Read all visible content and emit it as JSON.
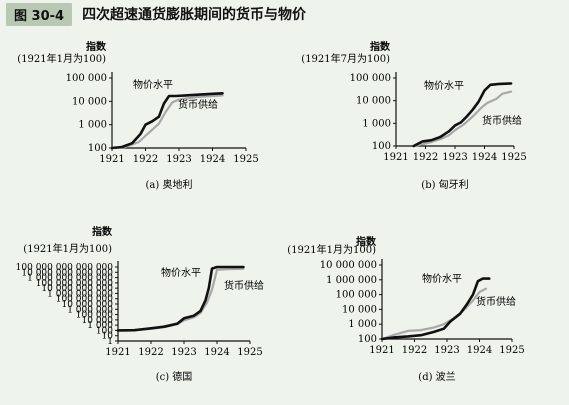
{
  "figure": {
    "number": "图 30-4",
    "title": "四次超速通货膨胀期间的货币与物价"
  },
  "colors": {
    "price_line": "#111111",
    "money_line": "#a8a8a8",
    "background": "#eef4ec",
    "header_tag": "#b9c8b2"
  },
  "chart_data": [
    {
      "type": "line",
      "caption": "(a) 奥地利",
      "ylabel": "指数",
      "ylabel_sub": "(1921年1月为100)",
      "scale": "log",
      "xlim": [
        1921,
        1925
      ],
      "ylim": [
        100,
        100000
      ],
      "x_ticks": [
        "1921",
        "1922",
        "1923",
        "1924",
        "1925"
      ],
      "y_ticks": [
        {
          "value": 100,
          "label": "100"
        },
        {
          "value": 1000,
          "label": "1 000"
        },
        {
          "value": 10000,
          "label": "10 000"
        },
        {
          "value": 100000,
          "label": "100 000"
        }
      ],
      "series": [
        {
          "name": "物价水平",
          "points": [
            [
              1921.0,
              100
            ],
            [
              1921.3,
              110
            ],
            [
              1921.6,
              160
            ],
            [
              1921.85,
              400
            ],
            [
              1922.0,
              1000
            ],
            [
              1922.2,
              1400
            ],
            [
              1922.4,
              2200
            ],
            [
              1922.55,
              8000
            ],
            [
              1922.7,
              17000
            ],
            [
              1922.9,
              17000
            ],
            [
              1923.2,
              18000
            ],
            [
              1923.5,
              19000
            ],
            [
              1924.0,
              21000
            ],
            [
              1924.3,
              22000
            ]
          ]
        },
        {
          "name": "货币供给",
          "points": [
            [
              1921.0,
              100
            ],
            [
              1921.4,
              110
            ],
            [
              1921.8,
              180
            ],
            [
              1922.1,
              450
            ],
            [
              1922.4,
              1100
            ],
            [
              1922.6,
              3500
            ],
            [
              1922.8,
              9000
            ],
            [
              1923.0,
              12000
            ],
            [
              1923.5,
              15000
            ],
            [
              1924.0,
              17000
            ],
            [
              1924.3,
              18000
            ]
          ]
        }
      ]
    },
    {
      "type": "line",
      "caption": "(b) 匈牙利",
      "ylabel": "指数",
      "ylabel_sub": "(1921年7月为100)",
      "scale": "log",
      "xlim": [
        1921,
        1925
      ],
      "ylim": [
        100,
        100000
      ],
      "x_ticks": [
        "1921",
        "1922",
        "1923",
        "1924",
        "1925"
      ],
      "y_ticks": [
        {
          "value": 100,
          "label": "100"
        },
        {
          "value": 1000,
          "label": "1 000"
        },
        {
          "value": 10000,
          "label": "10 000"
        },
        {
          "value": 100000,
          "label": "100 000"
        }
      ],
      "series": [
        {
          "name": "物价水平",
          "points": [
            [
              1921.6,
              100
            ],
            [
              1921.9,
              160
            ],
            [
              1922.2,
              180
            ],
            [
              1922.5,
              250
            ],
            [
              1922.8,
              450
            ],
            [
              1923.0,
              800
            ],
            [
              1923.2,
              1100
            ],
            [
              1923.4,
              2000
            ],
            [
              1923.6,
              4000
            ],
            [
              1923.8,
              9000
            ],
            [
              1924.0,
              28000
            ],
            [
              1924.2,
              50000
            ],
            [
              1924.5,
              55000
            ],
            [
              1924.9,
              57000
            ]
          ]
        },
        {
          "name": "货币供给",
          "points": [
            [
              1921.6,
              100
            ],
            [
              1921.9,
              120
            ],
            [
              1922.2,
              150
            ],
            [
              1922.5,
              200
            ],
            [
              1922.8,
              300
            ],
            [
              1923.0,
              500
            ],
            [
              1923.3,
              900
            ],
            [
              1923.6,
              2000
            ],
            [
              1923.9,
              5000
            ],
            [
              1924.1,
              8000
            ],
            [
              1924.4,
              12000
            ],
            [
              1924.6,
              20000
            ],
            [
              1924.9,
              25000
            ]
          ]
        }
      ]
    },
    {
      "type": "line",
      "caption": "(c) 德国",
      "ylabel": "指数",
      "ylabel_sub": "(1921年1月为100)",
      "scale": "log",
      "xlim": [
        1921,
        1925
      ],
      "ylim": [
        1,
        100000000000000
      ],
      "x_ticks": [
        "1921",
        "1922",
        "1923",
        "1924",
        "1925"
      ],
      "y_ticks": [
        {
          "value": 1,
          "label": "1"
        },
        {
          "value": 10,
          "label": "10"
        },
        {
          "value": 100,
          "label": "100"
        },
        {
          "value": 1000,
          "label": "1 000"
        },
        {
          "value": 10000,
          "label": "10 000"
        },
        {
          "value": 100000,
          "label": "100 000"
        },
        {
          "value": 1000000,
          "label": "1 000 000"
        },
        {
          "value": 10000000,
          "label": "10 000 000"
        },
        {
          "value": 100000000,
          "label": "100 000 000"
        },
        {
          "value": 1000000000,
          "label": "1 000 000 000"
        },
        {
          "value": 10000000000,
          "label": "10 000 000 000"
        },
        {
          "value": 100000000000,
          "label": "100 000 000 000"
        },
        {
          "value": 1000000000000,
          "label": "1 000 000 000 000"
        },
        {
          "value": 10000000000000,
          "label": "10 000 000 000 000"
        },
        {
          "value": 100000000000000,
          "label": "100 000 000 000 000"
        }
      ],
      "series": [
        {
          "name": "物价水平",
          "points": [
            [
              1921.0,
              100
            ],
            [
              1921.5,
              110
            ],
            [
              1922.0,
              250
            ],
            [
              1922.4,
              500
            ],
            [
              1922.8,
              2000
            ],
            [
              1923.0,
              20000
            ],
            [
              1923.3,
              60000
            ],
            [
              1923.5,
              500000
            ],
            [
              1923.65,
              50000000
            ],
            [
              1923.75,
              10000000000
            ],
            [
              1923.85,
              50000000000000
            ],
            [
              1924.0,
              100000000000000
            ],
            [
              1924.5,
              100000000000000
            ],
            [
              1924.8,
              100000000000000
            ]
          ]
        },
        {
          "name": "货币供给",
          "points": [
            [
              1921.0,
              100
            ],
            [
              1921.5,
              120
            ],
            [
              1922.0,
              200
            ],
            [
              1922.4,
              400
            ],
            [
              1922.8,
              1500
            ],
            [
              1923.0,
              8000
            ],
            [
              1923.3,
              30000
            ],
            [
              1923.5,
              200000
            ],
            [
              1923.7,
              20000000
            ],
            [
              1923.85,
              5000000000
            ],
            [
              1924.0,
              30000000000000
            ],
            [
              1924.3,
              40000000000000
            ],
            [
              1924.8,
              45000000000000
            ]
          ]
        }
      ]
    },
    {
      "type": "line",
      "caption": "(d) 波兰",
      "ylabel": "指数",
      "ylabel_sub": "(1921年1月为100)",
      "scale": "log",
      "xlim": [
        1921,
        1925
      ],
      "ylim": [
        100,
        10000000
      ],
      "x_ticks": [
        "1921",
        "1922",
        "1923",
        "1924",
        "1925"
      ],
      "y_ticks": [
        {
          "value": 100,
          "label": "100"
        },
        {
          "value": 1000,
          "label": "1 000"
        },
        {
          "value": 10000,
          "label": "10 000"
        },
        {
          "value": 100000,
          "label": "100 000"
        },
        {
          "value": 1000000,
          "label": "1 000 000"
        },
        {
          "value": 10000000,
          "label": "10 000 000"
        }
      ],
      "series": [
        {
          "name": "物价水平",
          "points": [
            [
              1921.0,
              100
            ],
            [
              1921.4,
              130
            ],
            [
              1921.8,
              150
            ],
            [
              1922.2,
              180
            ],
            [
              1922.6,
              300
            ],
            [
              1922.9,
              500
            ],
            [
              1923.1,
              1500
            ],
            [
              1923.4,
              5000
            ],
            [
              1923.6,
              20000
            ],
            [
              1923.8,
              100000
            ],
            [
              1923.95,
              800000
            ],
            [
              1924.1,
              1200000
            ],
            [
              1924.3,
              1200000
            ]
          ]
        },
        {
          "name": "货币供给",
          "points": [
            [
              1921.0,
              100
            ],
            [
              1921.4,
              200
            ],
            [
              1921.8,
              350
            ],
            [
              1922.2,
              400
            ],
            [
              1922.6,
              600
            ],
            [
              1922.9,
              1000
            ],
            [
              1923.2,
              2500
            ],
            [
              1923.5,
              8000
            ],
            [
              1923.8,
              40000
            ],
            [
              1924.0,
              150000
            ],
            [
              1924.2,
              250000
            ]
          ]
        }
      ]
    }
  ]
}
